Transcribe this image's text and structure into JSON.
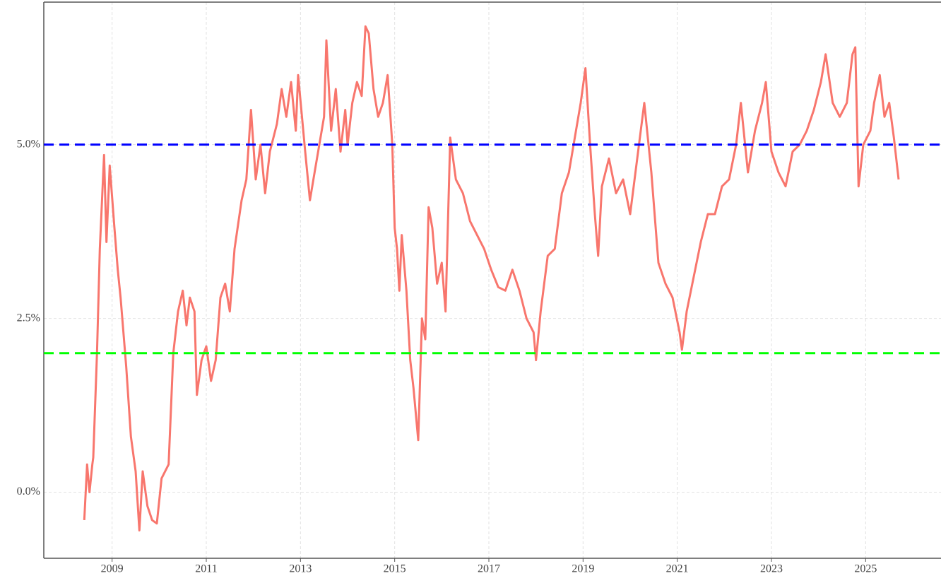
{
  "chart_data": {
    "type": "line",
    "x": [
      2008.41,
      2008.47,
      2008.52,
      2008.58,
      2008.6,
      2008.68,
      2008.74,
      2008.83,
      2008.88,
      2008.95,
      2009.05,
      2009.12,
      2009.18,
      2009.3,
      2009.4,
      2009.5,
      2009.58,
      2009.65,
      2009.75,
      2009.85,
      2009.95,
      2010.05,
      2010.2,
      2010.3,
      2010.4,
      2010.5,
      2010.58,
      2010.65,
      2010.75,
      2010.8,
      2010.9,
      2011.0,
      2011.1,
      2011.2,
      2011.3,
      2011.4,
      2011.5,
      2011.6,
      2011.75,
      2011.85,
      2011.95,
      2012.05,
      2012.15,
      2012.25,
      2012.35,
      2012.5,
      2012.6,
      2012.7,
      2012.8,
      2012.9,
      2012.95,
      2013.1,
      2013.2,
      2013.3,
      2013.4,
      2013.5,
      2013.55,
      2013.65,
      2013.75,
      2013.85,
      2013.95,
      2014.0,
      2014.1,
      2014.2,
      2014.3,
      2014.38,
      2014.45,
      2014.55,
      2014.65,
      2014.75,
      2014.85,
      2014.95,
      2015.0,
      2015.05,
      2015.1,
      2015.15,
      2015.25,
      2015.33,
      2015.4,
      2015.5,
      2015.58,
      2015.65,
      2015.72,
      2015.8,
      2015.9,
      2016.0,
      2016.08,
      2016.18,
      2016.3,
      2016.45,
      2016.6,
      2016.75,
      2016.9,
      2017.05,
      2017.2,
      2017.35,
      2017.5,
      2017.65,
      2017.8,
      2017.95,
      2018.0,
      2018.1,
      2018.25,
      2018.4,
      2018.55,
      2018.7,
      2018.85,
      2018.95,
      2019.05,
      2019.15,
      2019.25,
      2019.32,
      2019.4,
      2019.55,
      2019.7,
      2019.85,
      2020.0,
      2020.15,
      2020.3,
      2020.45,
      2020.6,
      2020.75,
      2020.9,
      2021.05,
      2021.1,
      2021.2,
      2021.35,
      2021.5,
      2021.65,
      2021.8,
      2021.95,
      2022.1,
      2022.25,
      2022.35,
      2022.5,
      2022.65,
      2022.8,
      2022.88,
      2023.0,
      2023.15,
      2023.3,
      2023.45,
      2023.6,
      2023.75,
      2023.9,
      2024.05,
      2024.15,
      2024.3,
      2024.45,
      2024.6,
      2024.72,
      2024.78,
      2024.85,
      2024.95,
      2025.1,
      2025.18,
      2025.3,
      2025.4,
      2025.5,
      2025.6,
      2025.7
    ],
    "series": [
      {
        "color": "#f8766d",
        "values": [
          -0.4,
          0.4,
          0.0,
          0.4,
          0.5,
          2.0,
          3.5,
          4.85,
          3.6,
          4.7,
          3.8,
          3.2,
          2.8,
          1.8,
          0.8,
          0.3,
          -0.55,
          0.3,
          -0.2,
          -0.4,
          -0.45,
          0.2,
          0.4,
          2.0,
          2.6,
          2.9,
          2.4,
          2.8,
          2.6,
          1.4,
          1.9,
          2.1,
          1.6,
          1.9,
          2.8,
          3.0,
          2.6,
          3.5,
          4.2,
          4.5,
          5.5,
          4.5,
          5.0,
          4.3,
          4.9,
          5.3,
          5.8,
          5.4,
          5.9,
          5.2,
          6.0,
          4.9,
          4.2,
          4.6,
          5.0,
          5.4,
          6.5,
          5.2,
          5.8,
          4.9,
          5.5,
          5.0,
          5.6,
          5.9,
          5.7,
          6.7,
          6.6,
          5.8,
          5.4,
          5.6,
          6.0,
          5.0,
          3.8,
          3.5,
          2.9,
          3.7,
          2.9,
          1.9,
          1.5,
          0.75,
          2.5,
          2.2,
          4.1,
          3.8,
          3.0,
          3.3,
          2.6,
          5.1,
          4.5,
          4.3,
          3.9,
          3.7,
          3.5,
          3.2,
          2.95,
          2.9,
          3.2,
          2.9,
          2.5,
          2.3,
          1.9,
          2.6,
          3.4,
          3.5,
          4.3,
          4.6,
          5.2,
          5.6,
          6.1,
          5.0,
          4.0,
          3.4,
          4.4,
          4.8,
          4.3,
          4.5,
          4.0,
          4.8,
          5.6,
          4.6,
          3.3,
          3.0,
          2.8,
          2.3,
          2.05,
          2.6,
          3.1,
          3.6,
          4.0,
          4.0,
          4.4,
          4.5,
          5.0,
          5.6,
          4.6,
          5.2,
          5.6,
          5.9,
          4.9,
          4.6,
          4.4,
          4.9,
          5.0,
          5.2,
          5.5,
          5.9,
          6.3,
          5.6,
          5.4,
          5.6,
          6.3,
          6.4,
          4.4,
          5.0,
          5.2,
          5.6,
          6.0,
          5.4,
          5.6,
          5.1,
          4.5
        ]
      }
    ],
    "reference_lines": [
      {
        "value": 5,
        "color": "#0000ff"
      },
      {
        "value": 2,
        "color": "#00ff00"
      }
    ],
    "xlim": [
      2007.55,
      2026.6
    ],
    "ylim": [
      -0.95,
      7.05
    ],
    "xticks": [
      2009,
      2011,
      2013,
      2015,
      2017,
      2019,
      2021,
      2023,
      2025
    ],
    "yticks": [
      {
        "value": 0,
        "label": "0.0%"
      },
      {
        "value": 2.5,
        "label": "2.5%"
      },
      {
        "value": 5,
        "label": "5.0%"
      }
    ],
    "grid": true
  }
}
